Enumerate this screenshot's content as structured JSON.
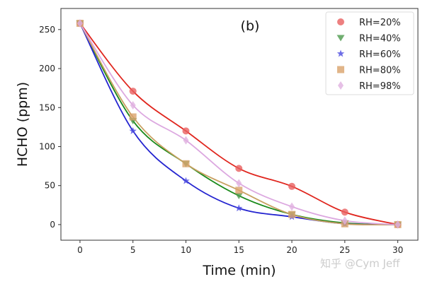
{
  "chart_data": {
    "type": "line",
    "title": "(b)",
    "xlabel": "Time (min)",
    "ylabel": "HCHO (ppm)",
    "x": [
      0,
      5,
      10,
      15,
      20,
      25,
      30
    ],
    "xticks": [
      "0",
      "5",
      "10",
      "15",
      "20",
      "25",
      "30"
    ],
    "yticks": [
      "0",
      "50",
      "100",
      "150",
      "200",
      "250"
    ],
    "xlim": [
      -1.8,
      31.9
    ],
    "ylim": [
      -20,
      277
    ],
    "grid": false,
    "legend_position": "top-right",
    "series": [
      {
        "name": "RH=20%",
        "marker": "circle",
        "marker_color": "#e86060",
        "line_color": "#e0261e",
        "values": [
          258,
          171,
          120,
          72,
          49,
          16,
          0
        ]
      },
      {
        "name": "RH=40%",
        "marker": "triangle-down",
        "marker_color": "#4c9a4c",
        "line_color": "#1a8a1a",
        "values": [
          258,
          133,
          78,
          37,
          13,
          2,
          0
        ]
      },
      {
        "name": "RH=60%",
        "marker": "star",
        "marker_color": "#4a4ae0",
        "line_color": "#2424d0",
        "values": [
          258,
          120,
          56,
          21,
          10,
          1,
          0
        ]
      },
      {
        "name": "RH=80%",
        "marker": "square",
        "marker_color": "#d9a36b",
        "line_color": "#c8a060",
        "values": [
          258,
          138,
          78,
          44,
          13,
          1,
          0
        ]
      },
      {
        "name": "RH=98%",
        "marker": "diamond",
        "marker_color": "#e0b0e0",
        "line_color": "#dca8e0",
        "values": [
          258,
          153,
          108,
          53,
          23,
          5,
          0
        ]
      }
    ]
  },
  "watermark": "知乎 @Cym Jeff"
}
